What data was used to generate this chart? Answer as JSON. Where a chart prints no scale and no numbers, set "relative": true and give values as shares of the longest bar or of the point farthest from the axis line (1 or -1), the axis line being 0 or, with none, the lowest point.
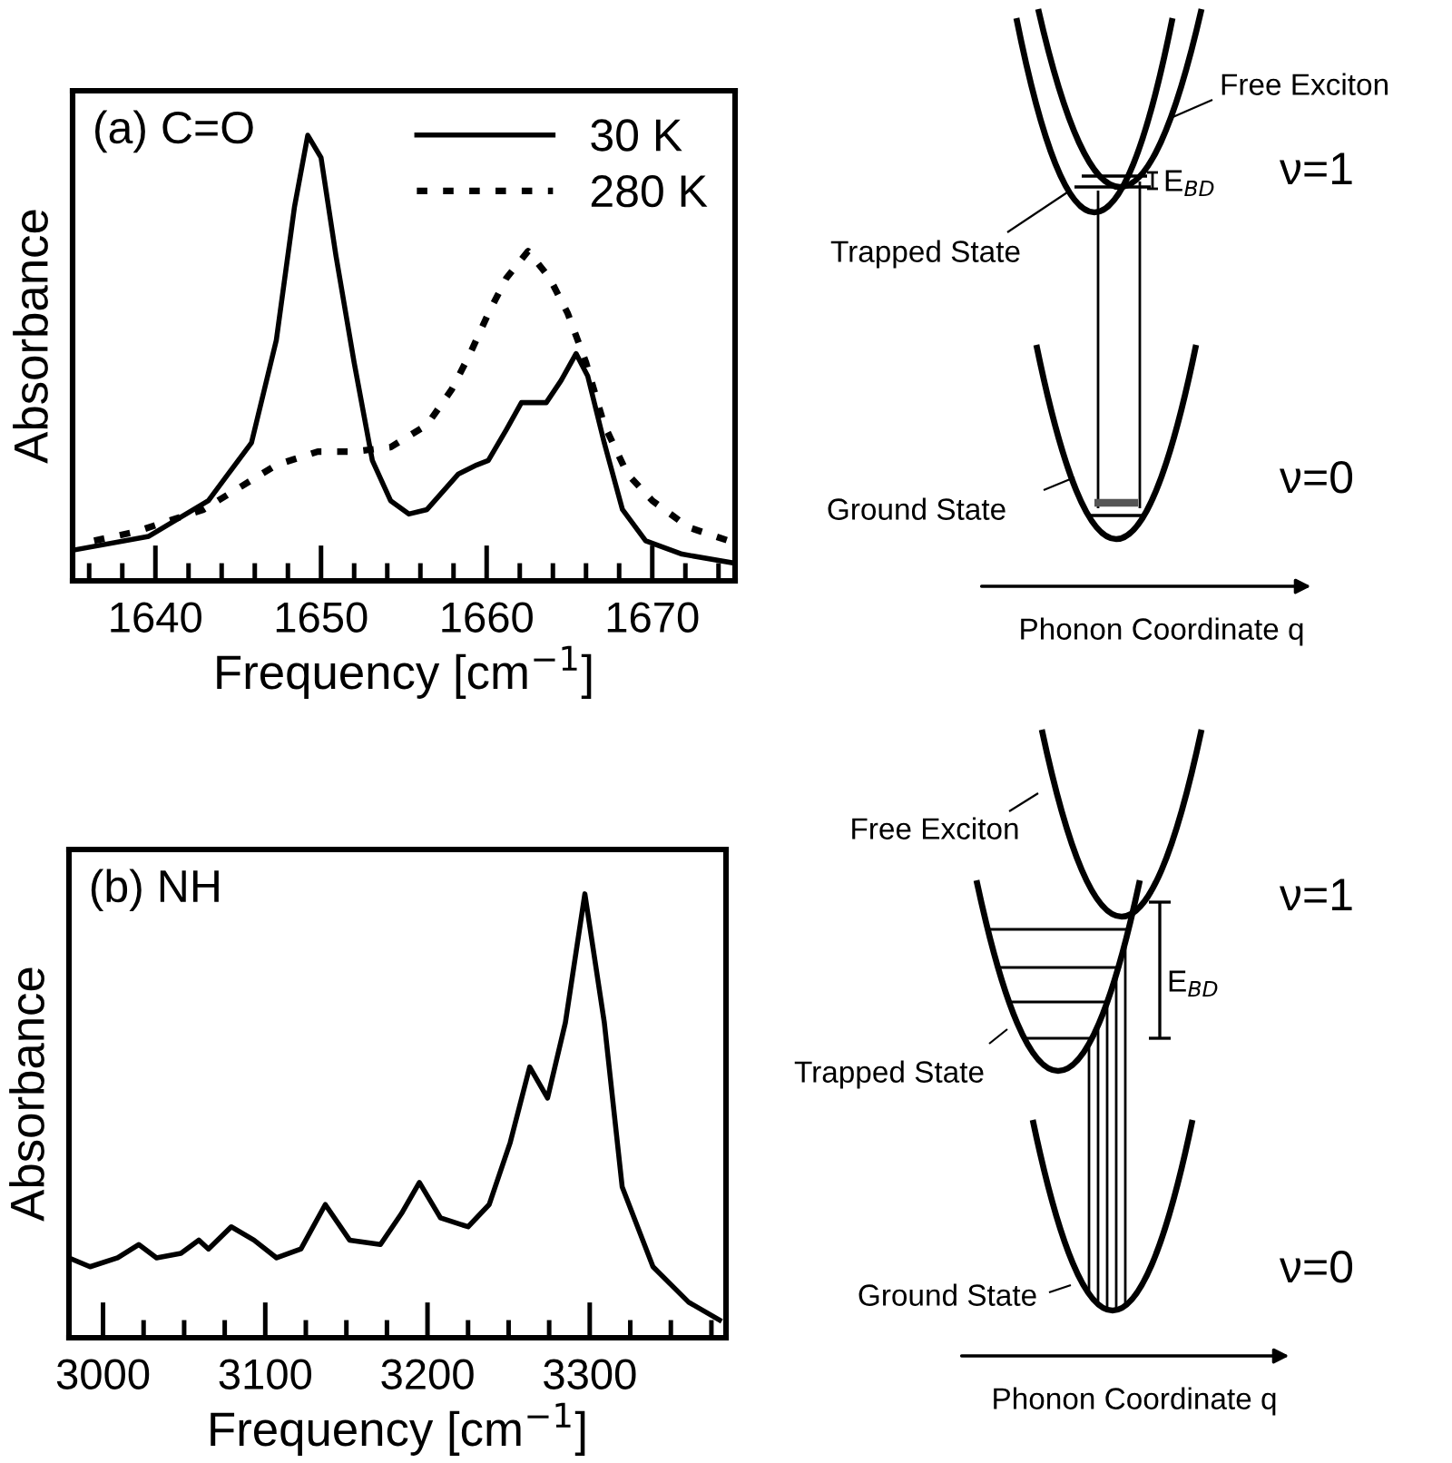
{
  "chart_data": [
    {
      "type": "line",
      "title": "(a) C=O",
      "xlabel": "Frequency [cm$^{−1}$]",
      "ylabel": "Absorbance",
      "relative": true,
      "tick_labels": "x",
      "legend": "top right",
      "grid": false,
      "xlim": [
        1635,
        1675
      ],
      "xticks": [
        {
          "value": 1636,
          "label": null
        },
        {
          "value": 1638,
          "label": null
        },
        1640,
        {
          "value": 1642,
          "label": null
        },
        {
          "value": 1644,
          "label": null
        },
        {
          "value": 1646,
          "label": null
        },
        {
          "value": 1648,
          "label": null
        },
        1650,
        {
          "value": 1652,
          "label": null
        },
        {
          "value": 1654,
          "label": null
        },
        {
          "value": 1656,
          "label": null
        },
        {
          "value": 1658,
          "label": null
        },
        1660,
        {
          "value": 1662,
          "label": null
        },
        {
          "value": 1664,
          "label": null
        },
        {
          "value": 1666,
          "label": null
        },
        {
          "value": 1668,
          "label": null
        },
        1670,
        {
          "value": 1672,
          "label": null
        },
        {
          "value": 1674,
          "label": null
        }
      ],
      "series": [
        {
          "name": "30 K",
          "color": "#000000",
          "line_style": "solid",
          "x": [
            1635.2,
            1639.6,
            1643.2,
            1645.8,
            1647.3,
            1648.4,
            1649.2,
            1650.0,
            1650.9,
            1652.0,
            1653.1,
            1654.2,
            1655.3,
            1656.4,
            1658.3,
            1659.4,
            1660.1,
            1661.2,
            1662.1,
            1663.6,
            1664.5,
            1665.4,
            1666.1,
            1667.1,
            1668.2,
            1669.6,
            1671.8,
            1674.9
          ],
          "values": [
            0.07,
            0.1,
            0.18,
            0.31,
            0.54,
            0.84,
            1.0,
            0.95,
            0.73,
            0.49,
            0.27,
            0.18,
            0.15,
            0.16,
            0.24,
            0.26,
            0.27,
            0.34,
            0.4,
            0.4,
            0.45,
            0.51,
            0.46,
            0.31,
            0.16,
            0.09,
            0.06,
            0.04
          ]
        },
        {
          "name": "280 K",
          "color": "#000000",
          "line_style": "dotted",
          "x": [
            1636.3,
            1638.8,
            1642.9,
            1645.1,
            1647.3,
            1649.8,
            1652.0,
            1654.2,
            1656.4,
            1657.9,
            1659.0,
            1660.1,
            1661.2,
            1662.5,
            1663.8,
            1664.9,
            1666.0,
            1667.1,
            1668.5,
            1670.0,
            1672.2,
            1674.6
          ],
          "values": [
            0.09,
            0.11,
            0.16,
            0.21,
            0.26,
            0.29,
            0.29,
            0.3,
            0.35,
            0.43,
            0.51,
            0.6,
            0.68,
            0.74,
            0.68,
            0.6,
            0.49,
            0.35,
            0.24,
            0.18,
            0.12,
            0.09
          ]
        }
      ]
    },
    {
      "type": "other",
      "annotations": [
        "Free Exciton",
        "ν=1",
        "E$_{BD}$",
        "Trapped State",
        "Ground State",
        "ν=0",
        "Phonon Coordinate q"
      ]
    },
    {
      "type": "line",
      "title": "(b) NH",
      "xlabel": "Frequency [cm$^{−1}$]",
      "ylabel": "Absorbance",
      "relative": true,
      "tick_labels": "x",
      "legend": false,
      "grid": false,
      "xlim": [
        2979,
        3384
      ],
      "xticks": [
        3000,
        {
          "value": 3025,
          "label": null
        },
        {
          "value": 3050,
          "label": null
        },
        {
          "value": 3075,
          "label": null
        },
        3100,
        {
          "value": 3125,
          "label": null
        },
        {
          "value": 3150,
          "label": null
        },
        {
          "value": 3175,
          "label": null
        },
        3200,
        {
          "value": 3225,
          "label": null
        },
        {
          "value": 3250,
          "label": null
        },
        {
          "value": 3275,
          "label": null
        },
        3300,
        {
          "value": 3325,
          "label": null
        },
        {
          "value": 3350,
          "label": null
        },
        {
          "value": 3375,
          "label": null
        }
      ],
      "series": [
        {
          "color": "#000000",
          "line_style": "solid",
          "x": [
            2979,
            2992,
            3009,
            3022,
            3033,
            3048,
            3059,
            3065,
            3079,
            3093,
            3107,
            3122,
            3137,
            3152,
            3171,
            3184,
            3195,
            3208,
            3225,
            3238,
            3251,
            3263,
            3274,
            3285,
            3297,
            3309,
            3320,
            3339,
            3361,
            3380
          ],
          "values": [
            0.18,
            0.16,
            0.18,
            0.21,
            0.18,
            0.19,
            0.22,
            0.2,
            0.25,
            0.22,
            0.18,
            0.2,
            0.3,
            0.22,
            0.21,
            0.28,
            0.35,
            0.27,
            0.25,
            0.3,
            0.44,
            0.61,
            0.54,
            0.71,
            1.0,
            0.71,
            0.34,
            0.16,
            0.08,
            0.04
          ]
        }
      ]
    },
    {
      "type": "other",
      "annotations": [
        "Free Exciton",
        "ν=1",
        "E$_{BD}$",
        "Trapped State",
        "Ground State",
        "ν=0",
        "Phonon Coordinate q"
      ]
    }
  ]
}
